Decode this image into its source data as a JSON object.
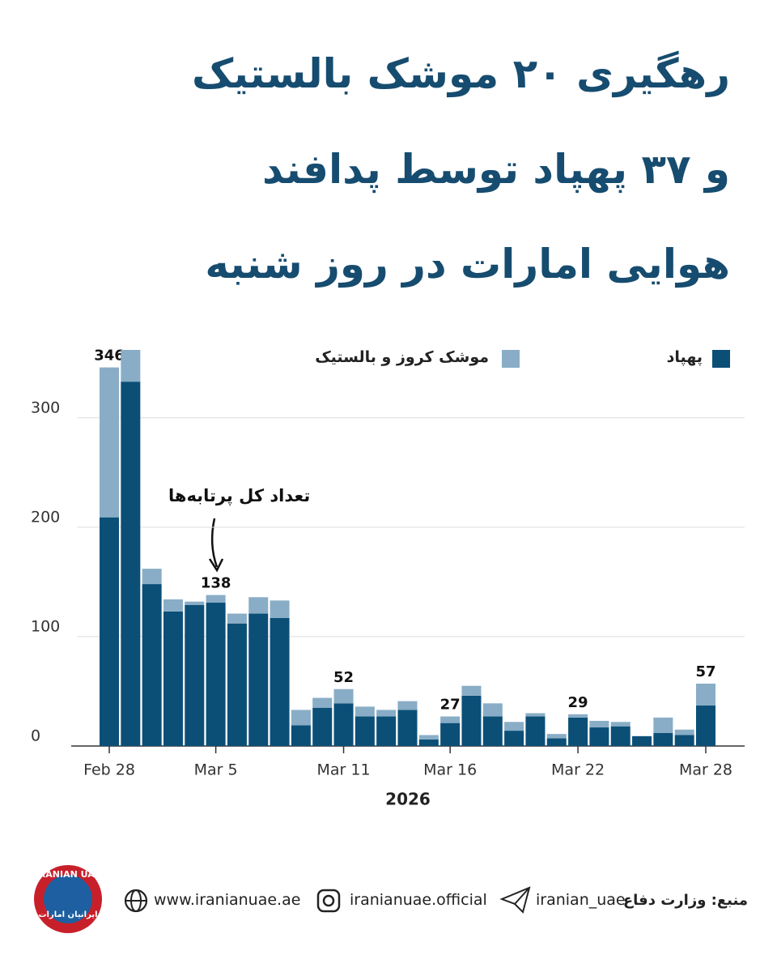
{
  "chart_data": {
    "type": "stacked_bar",
    "title_lines": [
      "رهگیری ۲۰ موشک بالستیک",
      "و ۳۷ پهپاد توسط پدافند",
      "هوایی امارات در روز شنبه"
    ],
    "categories": [
      "Feb 28",
      null,
      null,
      null,
      null,
      "Mar 5",
      null,
      null,
      null,
      null,
      null,
      "Mar 11",
      null,
      null,
      null,
      null,
      "Mar 16",
      null,
      null,
      null,
      null,
      null,
      "Mar 22",
      null,
      null,
      null,
      null,
      null,
      "Mar 28"
    ],
    "series": [
      {
        "name": "پهپاد",
        "color": "#0b4f77",
        "values": [
          209,
          333,
          148,
          123,
          129,
          131,
          112,
          121,
          117,
          19,
          35,
          39,
          27,
          27,
          33,
          6,
          21,
          46,
          27,
          14,
          27,
          7,
          26,
          17,
          18,
          9,
          12,
          10,
          37
        ]
      },
      {
        "name": "موشک کروز و بالستیک",
        "color": "#89adc6",
        "values": [
          137,
          29,
          14,
          11,
          3,
          7,
          9,
          15,
          16,
          14,
          9,
          13,
          9,
          6,
          8,
          4,
          6,
          9,
          12,
          8,
          3,
          4,
          3,
          6,
          4,
          0,
          14,
          5,
          20
        ]
      }
    ],
    "totals": [
      346,
      null,
      null,
      null,
      null,
      138,
      null,
      null,
      null,
      null,
      null,
      52,
      null,
      null,
      null,
      null,
      27,
      null,
      null,
      null,
      null,
      null,
      29,
      null,
      null,
      null,
      null,
      null,
      57
    ],
    "annotation": "تعداد کل پرتابه‌ها",
    "x_label": "2026",
    "ylim": [
      0,
      362
    ],
    "yticks": [
      0,
      100,
      200,
      300
    ],
    "grid": true
  },
  "footer": {
    "source": "منبع: وزارت دفاع",
    "telegram": "iranian_uae",
    "instagram": "iranianuae.official",
    "website": "www.iranianuae.ae",
    "logo_top": "IRANIAN UAE",
    "logo_bottom": "ایرانیان امارات"
  }
}
